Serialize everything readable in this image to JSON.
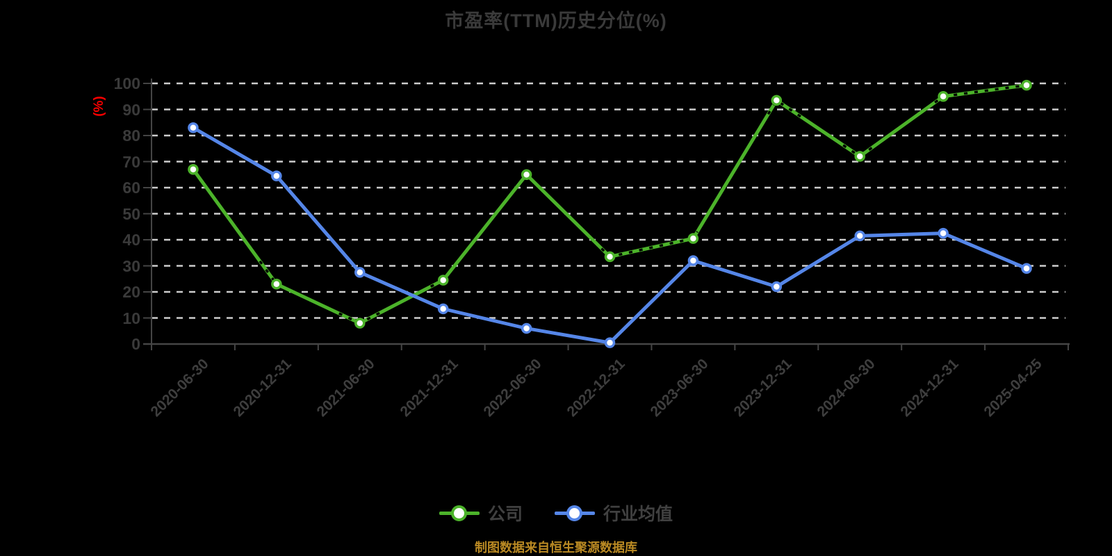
{
  "title": "市盈率(TTM)历史分位(%)",
  "y_axis": {
    "unit_label": "(%)",
    "min": 0,
    "max": 100,
    "step": 10
  },
  "x_axis": {
    "categories": [
      "2020-06-30",
      "2020-12-31",
      "2021-06-30",
      "2021-12-31",
      "2022-06-30",
      "2022-12-31",
      "2023-06-30",
      "2023-12-31",
      "2024-06-30",
      "2024-12-31",
      "2025-04-25"
    ]
  },
  "legend": [
    {
      "key": "company",
      "label": "公司",
      "color": "#4cb32a"
    },
    {
      "key": "industry-average",
      "label": "行业均值",
      "color": "#5586e8"
    }
  ],
  "footer": {
    "text": "制图数据来自恒生聚源数据库",
    "color": "#ba8a23"
  },
  "colors": {
    "background": "#000000",
    "title": "#3a3a3a",
    "axis": "#454545",
    "grid": "#cdcdcd",
    "tick_label": "#3a3a3a",
    "company_line": "#4cb32a",
    "industry_line": "#5586e8",
    "unit_label": "#fb0000",
    "marker_fill": "#ffffff"
  },
  "chart_data": {
    "type": "line",
    "title": "市盈率(TTM)历史分位(%)",
    "ylabel": "(%)",
    "ylim": [
      0,
      100
    ],
    "y_tick_step": 10,
    "grid": true,
    "grid_style": "dashed",
    "legend_position": "bottom",
    "categories": [
      "2020-06-30",
      "2020-12-31",
      "2021-06-30",
      "2021-12-31",
      "2022-06-30",
      "2022-12-31",
      "2023-06-30",
      "2023-12-31",
      "2024-06-30",
      "2024-12-31",
      "2025-04-25"
    ],
    "series": [
      {
        "name": "公司",
        "color": "#4cb32a",
        "values": [
          67,
          23,
          8,
          24.5,
          65,
          33.5,
          40.5,
          93.5,
          72,
          95,
          99.3
        ],
        "dashed_overlay_ranges": [
          [
            0.8,
            1.05
          ],
          [
            1.75,
            2.3
          ],
          [
            2.85,
            3.05
          ],
          [
            4.9,
            6.05
          ],
          [
            6.9,
            7.3
          ],
          [
            7.8,
            8.15
          ],
          [
            8.9,
            10
          ]
        ]
      },
      {
        "name": "行业均值",
        "color": "#5586e8",
        "values": [
          83,
          64.5,
          27.5,
          13.5,
          6,
          0.5,
          32,
          22,
          41.5,
          42.5,
          29
        ],
        "dashed_overlay_ranges": []
      }
    ]
  }
}
